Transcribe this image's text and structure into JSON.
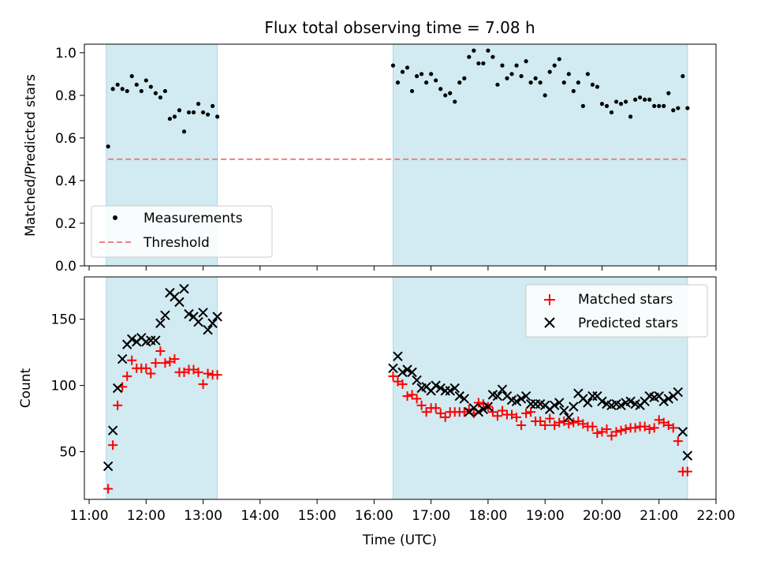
{
  "chart_data": [
    {
      "type": "scatter",
      "title": "Flux total observing time = 7.08 h",
      "ylabel": "Matched/Predicted stars",
      "xlabel": "",
      "ylim": [
        0,
        1.04
      ],
      "yticks": [
        0.0,
        0.2,
        0.4,
        0.6,
        0.8,
        1.0
      ],
      "ytick_labels": [
        "0.0",
        "0.2",
        "0.4",
        "0.6",
        "0.8",
        "1.0"
      ],
      "xlim": [
        "10:55",
        "22:00"
      ],
      "legend_position": "lower-left",
      "shaded_intervals": [
        [
          "11:18",
          "13:15"
        ],
        [
          "16:20",
          "21:30"
        ]
      ],
      "threshold": 0.5,
      "legend": [
        "Measurements",
        "Threshold"
      ],
      "colors": {
        "measurements": "#000000",
        "threshold": "#f08080",
        "shade": "#add8e6"
      },
      "series": [
        {
          "name": "Measurements",
          "x": [
            "11:20",
            "11:25",
            "11:30",
            "11:35",
            "11:40",
            "11:45",
            "11:50",
            "11:55",
            "12:00",
            "12:05",
            "12:10",
            "12:15",
            "12:20",
            "12:25",
            "12:30",
            "12:35",
            "12:40",
            "12:45",
            "12:50",
            "12:55",
            "13:00",
            "13:05",
            "13:10",
            "13:15",
            "16:20",
            "16:25",
            "16:30",
            "16:35",
            "16:40",
            "16:45",
            "16:50",
            "16:55",
            "17:00",
            "17:05",
            "17:10",
            "17:15",
            "17:20",
            "17:25",
            "17:30",
            "17:35",
            "17:40",
            "17:45",
            "17:50",
            "17:55",
            "18:00",
            "18:05",
            "18:10",
            "18:15",
            "18:20",
            "18:25",
            "18:30",
            "18:35",
            "18:40",
            "18:45",
            "18:50",
            "18:55",
            "19:00",
            "19:05",
            "19:10",
            "19:15",
            "19:20",
            "19:25",
            "19:30",
            "19:35",
            "19:40",
            "19:45",
            "19:50",
            "19:55",
            "20:00",
            "20:05",
            "20:10",
            "20:15",
            "20:20",
            "20:25",
            "20:30",
            "20:35",
            "20:40",
            "20:45",
            "20:50",
            "20:55",
            "21:00",
            "21:05",
            "21:10",
            "21:15",
            "21:20",
            "21:25",
            "21:30"
          ],
          "y": [
            0.56,
            0.83,
            0.85,
            0.83,
            0.82,
            0.89,
            0.85,
            0.82,
            0.87,
            0.84,
            0.81,
            0.79,
            0.82,
            0.69,
            0.7,
            0.73,
            0.63,
            0.72,
            0.72,
            0.76,
            0.72,
            0.71,
            0.75,
            0.7,
            0.94,
            0.86,
            0.91,
            0.93,
            0.82,
            0.89,
            0.9,
            0.86,
            0.9,
            0.87,
            0.83,
            0.8,
            0.81,
            0.77,
            0.86,
            0.88,
            0.98,
            1.01,
            0.95,
            0.95,
            1.01,
            0.98,
            0.85,
            0.94,
            0.88,
            0.9,
            0.94,
            0.89,
            0.96,
            0.86,
            0.88,
            0.86,
            0.8,
            0.91,
            0.94,
            0.97,
            0.86,
            0.9,
            0.82,
            0.86,
            0.75,
            0.9,
            0.85,
            0.84,
            0.76,
            0.75,
            0.72,
            0.77,
            0.76,
            0.77,
            0.7,
            0.78,
            0.79,
            0.78,
            0.78,
            0.75,
            0.75,
            0.75,
            0.81,
            0.73,
            0.74,
            0.89,
            0.74
          ]
        }
      ]
    },
    {
      "type": "scatter",
      "title": "",
      "ylabel": "Count",
      "xlabel": "Time (UTC)",
      "ylim": [
        14,
        182
      ],
      "yticks": [
        50,
        100,
        150
      ],
      "ytick_labels": [
        "50",
        "100",
        "150"
      ],
      "xlim": [
        "10:55",
        "22:00"
      ],
      "xticks": [
        "11:00",
        "12:00",
        "13:00",
        "14:00",
        "15:00",
        "16:00",
        "17:00",
        "18:00",
        "19:00",
        "20:00",
        "21:00",
        "22:00"
      ],
      "legend_position": "upper-right",
      "shaded_intervals": [
        [
          "11:18",
          "13:15"
        ],
        [
          "16:20",
          "21:30"
        ]
      ],
      "legend": [
        "Matched stars",
        "Predicted stars"
      ],
      "colors": {
        "matched": "#ff0000",
        "predicted": "#000000",
        "shade": "#add8e6"
      },
      "series": [
        {
          "name": "Matched stars",
          "x": [
            "11:20",
            "11:25",
            "11:30",
            "11:35",
            "11:40",
            "11:45",
            "11:50",
            "11:55",
            "12:00",
            "12:05",
            "12:10",
            "12:15",
            "12:20",
            "12:25",
            "12:30",
            "12:35",
            "12:40",
            "12:45",
            "12:50",
            "12:55",
            "13:00",
            "13:05",
            "13:10",
            "13:15",
            "16:20",
            "16:25",
            "16:30",
            "16:35",
            "16:40",
            "16:45",
            "16:50",
            "16:55",
            "17:00",
            "17:05",
            "17:10",
            "17:15",
            "17:20",
            "17:25",
            "17:30",
            "17:35",
            "17:40",
            "17:45",
            "17:50",
            "17:55",
            "18:00",
            "18:05",
            "18:10",
            "18:15",
            "18:20",
            "18:25",
            "18:30",
            "18:35",
            "18:40",
            "18:45",
            "18:50",
            "18:55",
            "19:00",
            "19:05",
            "19:10",
            "19:15",
            "19:20",
            "19:25",
            "19:30",
            "19:35",
            "19:40",
            "19:45",
            "19:50",
            "19:55",
            "20:00",
            "20:05",
            "20:10",
            "20:15",
            "20:20",
            "20:25",
            "20:30",
            "20:35",
            "20:40",
            "20:45",
            "20:50",
            "20:55",
            "21:00",
            "21:05",
            "21:10",
            "21:15",
            "21:20",
            "21:25",
            "21:30"
          ],
          "y": [
            22,
            55,
            85,
            99,
            107,
            119,
            113,
            113,
            113,
            109,
            117,
            126,
            117,
            118,
            120,
            110,
            110,
            112,
            112,
            110,
            101,
            109,
            108,
            108,
            107,
            103,
            101,
            92,
            93,
            90,
            85,
            80,
            83,
            83,
            79,
            76,
            80,
            80,
            80,
            80,
            82,
            79,
            87,
            86,
            84,
            80,
            77,
            81,
            78,
            78,
            76,
            70,
            79,
            80,
            73,
            73,
            70,
            75,
            70,
            72,
            73,
            71,
            72,
            73,
            71,
            69,
            69,
            64,
            65,
            67,
            62,
            65,
            66,
            67,
            68,
            68,
            69,
            69,
            67,
            68,
            74,
            72,
            70,
            68,
            58,
            35,
            35
          ]
        },
        {
          "name": "Predicted stars",
          "x": [
            "11:20",
            "11:25",
            "11:30",
            "11:35",
            "11:40",
            "11:45",
            "11:50",
            "11:55",
            "12:00",
            "12:05",
            "12:10",
            "12:15",
            "12:20",
            "12:25",
            "12:30",
            "12:35",
            "12:40",
            "12:45",
            "12:50",
            "12:55",
            "13:00",
            "13:05",
            "13:10",
            "13:15",
            "16:20",
            "16:25",
            "16:30",
            "16:35",
            "16:40",
            "16:45",
            "16:50",
            "16:55",
            "17:00",
            "17:05",
            "17:10",
            "17:15",
            "17:20",
            "17:25",
            "17:30",
            "17:35",
            "17:40",
            "17:45",
            "17:50",
            "17:55",
            "18:00",
            "18:05",
            "18:10",
            "18:15",
            "18:20",
            "18:25",
            "18:30",
            "18:35",
            "18:40",
            "18:45",
            "18:50",
            "18:55",
            "19:00",
            "19:05",
            "19:10",
            "19:15",
            "19:20",
            "19:25",
            "19:30",
            "19:35",
            "19:40",
            "19:45",
            "19:50",
            "19:55",
            "20:00",
            "20:05",
            "20:10",
            "20:15",
            "20:20",
            "20:25",
            "20:30",
            "20:35",
            "20:40",
            "20:45",
            "20:50",
            "20:55",
            "21:00",
            "21:05",
            "21:10",
            "21:15",
            "21:20",
            "21:25",
            "21:30"
          ],
          "y": [
            39,
            66,
            98,
            120,
            131,
            135,
            133,
            136,
            133,
            134,
            134,
            147,
            153,
            170,
            167,
            163,
            173,
            154,
            152,
            148,
            155,
            142,
            147,
            152,
            113,
            122,
            110,
            112,
            110,
            104,
            98,
            99,
            96,
            100,
            98,
            96,
            96,
            98,
            92,
            90,
            80,
            83,
            80,
            82,
            84,
            93,
            92,
            97,
            92,
            89,
            88,
            90,
            92,
            86,
            86,
            86,
            85,
            82,
            85,
            87,
            81,
            76,
            84,
            94,
            90,
            87,
            92,
            92,
            88,
            86,
            85,
            86,
            85,
            87,
            88,
            86,
            85,
            88,
            92,
            91,
            92,
            88,
            90,
            92,
            95,
            65,
            47
          ]
        }
      ]
    }
  ]
}
